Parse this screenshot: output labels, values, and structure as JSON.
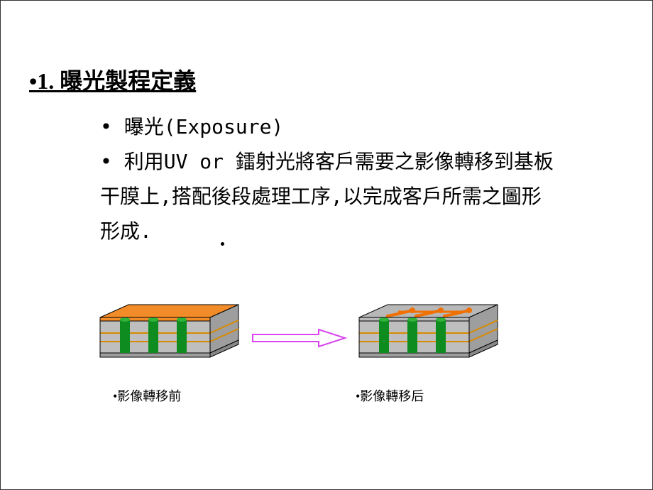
{
  "title": "•1. 曝光製程定義",
  "bullets": {
    "b1": "• 曝光(Exposure)",
    "b2": "• 利用UV or 鐳射光將客戶需要之影像轉移到基板干膜上,搭配後段處理工序,以完成客戶所需之圖形形成."
  },
  "captions": {
    "before": "•影像轉移前",
    "after": "•影像轉移后"
  },
  "diagram": {
    "before_top_color": "#F28C28",
    "after_top_color": "#B8B8B8",
    "body_color": "#BEBEBE",
    "bottom_color": "#9E9E9E",
    "via_color": "#0E8C1F",
    "trace_color": "#D88A00",
    "circuit_color": "#F07000",
    "outline_color": "#000000"
  },
  "arrow": {
    "fill": "#ffffff",
    "stroke": "#D946EF",
    "stroke_width": 2
  }
}
